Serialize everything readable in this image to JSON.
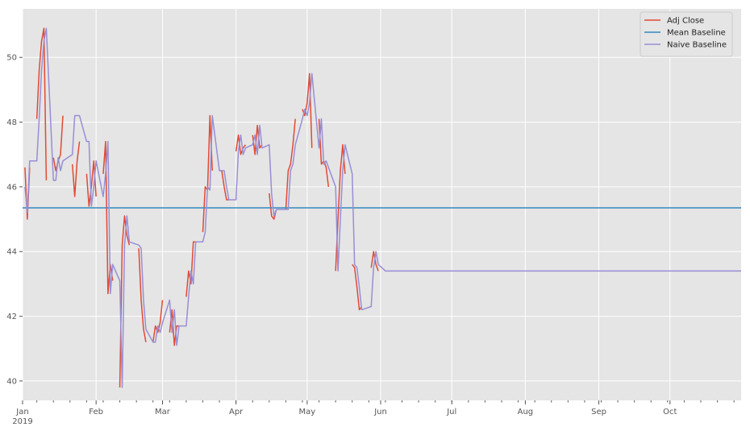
{
  "chart_data": {
    "type": "line",
    "title": "",
    "xlabel": "",
    "ylabel": "",
    "xlim": [
      "2019-01-01",
      "2019-10-31"
    ],
    "ylim": [
      39.4,
      51.5
    ],
    "grid": true,
    "legend_position": "top-right",
    "yticks": [
      40,
      42,
      44,
      46,
      48,
      50
    ],
    "xticks": [
      {
        "date": "2019-01-01",
        "label": "Jan",
        "sublabel": "2019"
      },
      {
        "date": "2019-02-01",
        "label": "Feb"
      },
      {
        "date": "2019-03-01",
        "label": "Mar"
      },
      {
        "date": "2019-04-01",
        "label": "Apr"
      },
      {
        "date": "2019-05-01",
        "label": "May"
      },
      {
        "date": "2019-06-01",
        "label": "Jun"
      },
      {
        "date": "2019-07-01",
        "label": "Jul"
      },
      {
        "date": "2019-08-01",
        "label": "Aug"
      },
      {
        "date": "2019-09-01",
        "label": "Sep"
      },
      {
        "date": "2019-10-01",
        "label": "Oct"
      }
    ],
    "series": [
      {
        "name": "Adj Close",
        "color": "#e24a33",
        "points": [
          [
            "2019-01-02",
            46.6
          ],
          [
            "2019-01-03",
            45.0
          ],
          [
            "2019-01-04",
            46.6
          ],
          null,
          [
            "2019-01-07",
            48.1
          ],
          [
            "2019-01-08",
            49.6
          ],
          [
            "2019-01-09",
            50.5
          ],
          [
            "2019-01-10",
            50.9
          ],
          [
            "2019-01-11",
            46.2
          ],
          null,
          [
            "2019-01-14",
            46.9
          ],
          [
            "2019-01-15",
            46.5
          ],
          [
            "2019-01-16",
            46.8
          ],
          [
            "2019-01-17",
            47.0
          ],
          [
            "2019-01-18",
            48.2
          ],
          null,
          [
            "2019-01-22",
            46.7
          ],
          [
            "2019-01-23",
            45.7
          ],
          [
            "2019-01-24",
            46.8
          ],
          [
            "2019-01-25",
            47.4
          ],
          null,
          [
            "2019-01-28",
            46.4
          ],
          [
            "2019-01-29",
            45.4
          ],
          [
            "2019-01-30",
            46.0
          ],
          [
            "2019-01-31",
            46.8
          ],
          [
            "2019-02-01",
            45.7
          ],
          null,
          [
            "2019-02-04",
            46.4
          ],
          [
            "2019-02-05",
            47.4
          ],
          [
            "2019-02-06",
            42.7
          ],
          [
            "2019-02-07",
            43.6
          ],
          [
            "2019-02-08",
            43.1
          ],
          null,
          [
            "2019-02-11",
            39.8
          ],
          [
            "2019-02-12",
            44.2
          ],
          [
            "2019-02-13",
            45.1
          ],
          [
            "2019-02-14",
            44.5
          ],
          [
            "2019-02-15",
            44.2
          ],
          null,
          [
            "2019-02-19",
            44.1
          ],
          [
            "2019-02-20",
            42.5
          ],
          [
            "2019-02-21",
            41.6
          ],
          [
            "2019-02-22",
            41.2
          ],
          null,
          [
            "2019-02-25",
            41.2
          ],
          [
            "2019-02-26",
            41.7
          ],
          [
            "2019-02-27",
            41.5
          ],
          [
            "2019-02-28",
            41.8
          ],
          [
            "2019-03-01",
            42.5
          ],
          null,
          [
            "2019-03-04",
            41.5
          ],
          [
            "2019-03-05",
            42.2
          ],
          [
            "2019-03-06",
            41.1
          ],
          [
            "2019-03-07",
            41.7
          ],
          [
            "2019-03-08",
            41.7
          ],
          null,
          [
            "2019-03-11",
            42.6
          ],
          [
            "2019-03-12",
            43.4
          ],
          [
            "2019-03-13",
            43.0
          ],
          [
            "2019-03-14",
            44.3
          ],
          [
            "2019-03-15",
            44.3
          ],
          null,
          [
            "2019-03-18",
            44.6
          ],
          [
            "2019-03-19",
            46.0
          ],
          [
            "2019-03-20",
            45.9
          ],
          [
            "2019-03-21",
            48.2
          ],
          [
            "2019-03-22",
            46.5
          ],
          null,
          [
            "2019-03-25",
            46.5
          ],
          [
            "2019-03-26",
            46.5
          ],
          [
            "2019-03-27",
            46.0
          ],
          [
            "2019-03-28",
            45.6
          ],
          [
            "2019-03-29",
            45.6
          ],
          null,
          [
            "2019-04-01",
            47.1
          ],
          [
            "2019-04-02",
            47.6
          ],
          [
            "2019-04-03",
            47.0
          ],
          [
            "2019-04-04",
            47.2
          ],
          [
            "2019-04-05",
            47.3
          ],
          null,
          [
            "2019-04-08",
            47.6
          ],
          [
            "2019-04-09",
            47.0
          ],
          [
            "2019-04-10",
            47.9
          ],
          [
            "2019-04-11",
            47.2
          ],
          [
            "2019-04-12",
            47.3
          ],
          null,
          [
            "2019-04-15",
            45.8
          ],
          [
            "2019-04-16",
            45.1
          ],
          [
            "2019-04-17",
            45.0
          ],
          [
            "2019-04-18",
            45.3
          ],
          null,
          [
            "2019-04-22",
            45.3
          ],
          [
            "2019-04-23",
            46.5
          ],
          [
            "2019-04-24",
            46.7
          ],
          [
            "2019-04-25",
            47.3
          ],
          [
            "2019-04-26",
            48.1
          ],
          null,
          [
            "2019-04-29",
            48.4
          ],
          [
            "2019-04-30",
            48.2
          ],
          [
            "2019-05-01",
            48.6
          ],
          [
            "2019-05-02",
            49.5
          ],
          [
            "2019-05-03",
            47.2
          ],
          null,
          [
            "2019-05-06",
            48.1
          ],
          [
            "2019-05-07",
            46.7
          ],
          [
            "2019-05-08",
            46.8
          ],
          [
            "2019-05-09",
            46.6
          ],
          [
            "2019-05-10",
            46.0
          ],
          null,
          [
            "2019-05-13",
            43.4
          ],
          [
            "2019-05-14",
            45.0
          ],
          [
            "2019-05-15",
            46.5
          ],
          [
            "2019-05-16",
            47.3
          ],
          [
            "2019-05-17",
            46.4
          ],
          null,
          [
            "2019-05-20",
            43.6
          ],
          [
            "2019-05-21",
            43.5
          ],
          [
            "2019-05-22",
            42.9
          ],
          [
            "2019-05-23",
            42.2
          ],
          [
            "2019-05-24",
            42.3
          ],
          null,
          [
            "2019-05-28",
            43.5
          ],
          [
            "2019-05-29",
            44.0
          ],
          [
            "2019-05-30",
            43.6
          ],
          [
            "2019-05-31",
            43.4
          ]
        ]
      },
      {
        "name": "Mean Baseline",
        "color": "#348abd",
        "points": [
          [
            "2019-01-01",
            45.35
          ],
          [
            "2019-10-31",
            45.35
          ]
        ]
      },
      {
        "name": "Naive Baseline",
        "color": "#988ed5",
        "points": [
          [
            "2019-01-02",
            46.0
          ],
          [
            "2019-01-03",
            45.2
          ],
          [
            "2019-01-04",
            46.8
          ],
          [
            "2019-01-07",
            46.8
          ],
          [
            "2019-01-08",
            48.1
          ],
          [
            "2019-01-09",
            49.6
          ],
          [
            "2019-01-10",
            50.5
          ],
          [
            "2019-01-11",
            50.9
          ],
          [
            "2019-01-14",
            46.2
          ],
          [
            "2019-01-15",
            46.2
          ],
          [
            "2019-01-16",
            46.9
          ],
          [
            "2019-01-17",
            46.5
          ],
          [
            "2019-01-18",
            46.8
          ],
          [
            "2019-01-22",
            47.0
          ],
          [
            "2019-01-23",
            48.2
          ],
          [
            "2019-01-24",
            48.2
          ],
          [
            "2019-01-25",
            48.2
          ],
          [
            "2019-01-28",
            47.4
          ],
          [
            "2019-01-29",
            47.4
          ],
          [
            "2019-01-30",
            45.4
          ],
          [
            "2019-01-31",
            46.0
          ],
          [
            "2019-02-01",
            46.8
          ],
          [
            "2019-02-04",
            45.7
          ],
          [
            "2019-02-05",
            46.4
          ],
          [
            "2019-02-06",
            47.4
          ],
          [
            "2019-02-07",
            42.7
          ],
          [
            "2019-02-08",
            43.6
          ],
          [
            "2019-02-11",
            43.1
          ],
          [
            "2019-02-12",
            39.8
          ],
          [
            "2019-02-13",
            44.2
          ],
          [
            "2019-02-14",
            45.1
          ],
          [
            "2019-02-15",
            44.3
          ],
          [
            "2019-02-19",
            44.2
          ],
          [
            "2019-02-20",
            44.1
          ],
          [
            "2019-02-21",
            42.5
          ],
          [
            "2019-02-22",
            41.6
          ],
          [
            "2019-02-25",
            41.2
          ],
          [
            "2019-02-26",
            41.2
          ],
          [
            "2019-02-27",
            41.7
          ],
          [
            "2019-02-28",
            41.5
          ],
          [
            "2019-03-01",
            41.8
          ],
          [
            "2019-03-04",
            42.5
          ],
          [
            "2019-03-05",
            41.5
          ],
          [
            "2019-03-06",
            42.2
          ],
          [
            "2019-03-07",
            41.1
          ],
          [
            "2019-03-08",
            41.7
          ],
          [
            "2019-03-11",
            41.7
          ],
          [
            "2019-03-12",
            42.6
          ],
          [
            "2019-03-13",
            43.4
          ],
          [
            "2019-03-14",
            43.0
          ],
          [
            "2019-03-15",
            44.3
          ],
          [
            "2019-03-18",
            44.3
          ],
          [
            "2019-03-19",
            44.6
          ],
          [
            "2019-03-20",
            46.0
          ],
          [
            "2019-03-21",
            45.9
          ],
          [
            "2019-03-22",
            48.2
          ],
          [
            "2019-03-25",
            46.5
          ],
          [
            "2019-03-26",
            46.5
          ],
          [
            "2019-03-27",
            46.5
          ],
          [
            "2019-03-28",
            46.0
          ],
          [
            "2019-03-29",
            45.6
          ],
          [
            "2019-04-01",
            45.6
          ],
          [
            "2019-04-02",
            47.1
          ],
          [
            "2019-04-03",
            47.6
          ],
          [
            "2019-04-04",
            47.0
          ],
          [
            "2019-04-05",
            47.2
          ],
          [
            "2019-04-08",
            47.3
          ],
          [
            "2019-04-09",
            47.6
          ],
          [
            "2019-04-10",
            47.0
          ],
          [
            "2019-04-11",
            47.9
          ],
          [
            "2019-04-12",
            47.2
          ],
          [
            "2019-04-15",
            47.3
          ],
          [
            "2019-04-16",
            45.8
          ],
          [
            "2019-04-17",
            45.1
          ],
          [
            "2019-04-18",
            45.3
          ],
          [
            "2019-04-22",
            45.3
          ],
          [
            "2019-04-23",
            45.3
          ],
          [
            "2019-04-24",
            46.5
          ],
          [
            "2019-04-25",
            46.7
          ],
          [
            "2019-04-26",
            47.3
          ],
          [
            "2019-04-29",
            48.1
          ],
          [
            "2019-04-30",
            48.4
          ],
          [
            "2019-05-01",
            48.2
          ],
          [
            "2019-05-02",
            48.6
          ],
          [
            "2019-05-03",
            49.5
          ],
          [
            "2019-05-06",
            47.2
          ],
          [
            "2019-05-07",
            48.1
          ],
          [
            "2019-05-08",
            46.7
          ],
          [
            "2019-05-09",
            46.8
          ],
          [
            "2019-05-10",
            46.6
          ],
          [
            "2019-05-13",
            46.0
          ],
          [
            "2019-05-14",
            43.4
          ],
          [
            "2019-05-15",
            45.0
          ],
          [
            "2019-05-16",
            46.5
          ],
          [
            "2019-05-17",
            47.3
          ],
          [
            "2019-05-20",
            46.4
          ],
          [
            "2019-05-21",
            43.6
          ],
          [
            "2019-05-22",
            43.5
          ],
          [
            "2019-05-23",
            42.9
          ],
          [
            "2019-05-24",
            42.2
          ],
          [
            "2019-05-28",
            42.3
          ],
          [
            "2019-05-29",
            43.5
          ],
          [
            "2019-05-30",
            44.0
          ],
          [
            "2019-05-31",
            43.6
          ],
          [
            "2019-06-03",
            43.4
          ],
          [
            "2019-10-31",
            43.4
          ]
        ]
      }
    ]
  }
}
